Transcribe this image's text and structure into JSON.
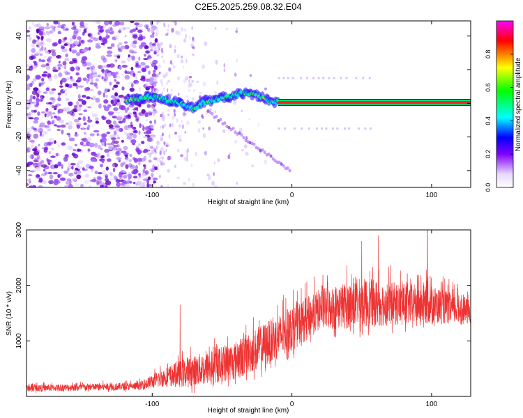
{
  "chart_data": [
    {
      "type": "heatmap",
      "title": "C2E5.2025.259.08.32.E04",
      "xlabel": "Height of straight line (km)",
      "ylabel": "Frequency (Hz)",
      "xlim": [
        -190,
        128
      ],
      "ylim": [
        -50,
        49
      ],
      "xticks": [
        -100,
        0,
        100
      ],
      "yticks": [
        -40,
        -20,
        0,
        20,
        40
      ],
      "colorbar": {
        "label": "Normalized spectral amplitude",
        "range": [
          0,
          1
        ],
        "ticks": [
          "0.0",
          "0.2",
          "0.4",
          "0.6",
          "0.8"
        ],
        "colors": [
          "#ffffff",
          "#e8d8ff",
          "#8000ff",
          "#0000ff",
          "#00ffff",
          "#00ff00",
          "#ffff00",
          "#ff8000",
          "#ff0000",
          "#ff00ff"
        ]
      },
      "features": {
        "noise_region_x": [
          -190,
          -100
        ],
        "signal_track": [
          {
            "x": -118,
            "freq": 2
          },
          {
            "x": -100,
            "freq": 4
          },
          {
            "x": -90,
            "freq": 2
          },
          {
            "x": -80,
            "freq": 0
          },
          {
            "x": -70,
            "freq": -3
          },
          {
            "x": -62,
            "freq": 1
          },
          {
            "x": -55,
            "freq": 2
          },
          {
            "x": -45,
            "freq": 4
          },
          {
            "x": -35,
            "freq": 6
          },
          {
            "x": -25,
            "freq": 5
          },
          {
            "x": -15,
            "freq": 1
          },
          {
            "x": 0,
            "freq": 1
          },
          {
            "x": 20,
            "freq": 0.5
          },
          {
            "x": 128,
            "freq": 0.5
          }
        ],
        "line_freq": 0.5,
        "line_start_x": -10,
        "line_end_x": 128,
        "sidebands_freq": [
          15,
          -15
        ],
        "sideband_x": [
          -10,
          60
        ]
      }
    },
    {
      "type": "line",
      "xlabel": "Height of straight line (km)",
      "ylabel": "SNR (10 * v/v)",
      "xlim": [
        -190,
        128
      ],
      "ylim": [
        0,
        3000
      ],
      "xticks": [
        -100,
        0,
        100
      ],
      "yticks": [
        1000,
        2000,
        3000
      ],
      "series": [
        {
          "name": "SNR",
          "color": "#ee3333",
          "envelope": [
            {
              "x": -190,
              "base": 130,
              "spread": 120
            },
            {
              "x": -110,
              "base": 160,
              "spread": 140
            },
            {
              "x": -90,
              "base": 300,
              "spread": 350
            },
            {
              "x": -75,
              "base": 350,
              "spread": 550
            },
            {
              "x": -60,
              "base": 420,
              "spread": 600
            },
            {
              "x": -40,
              "base": 550,
              "spread": 700
            },
            {
              "x": -20,
              "base": 800,
              "spread": 800
            },
            {
              "x": 0,
              "base": 1100,
              "spread": 800
            },
            {
              "x": 20,
              "base": 1450,
              "spread": 750
            },
            {
              "x": 50,
              "base": 1550,
              "spread": 900
            },
            {
              "x": 80,
              "base": 1550,
              "spread": 750
            },
            {
              "x": 100,
              "base": 1550,
              "spread": 700
            },
            {
              "x": 128,
              "base": 1450,
              "spread": 450
            }
          ],
          "peaks": [
            {
              "x": -80,
              "y": 1650
            },
            {
              "x": 50,
              "y": 2800
            },
            {
              "x": 62,
              "y": 2900
            },
            {
              "x": 97,
              "y": 3000
            }
          ]
        }
      ]
    }
  ]
}
